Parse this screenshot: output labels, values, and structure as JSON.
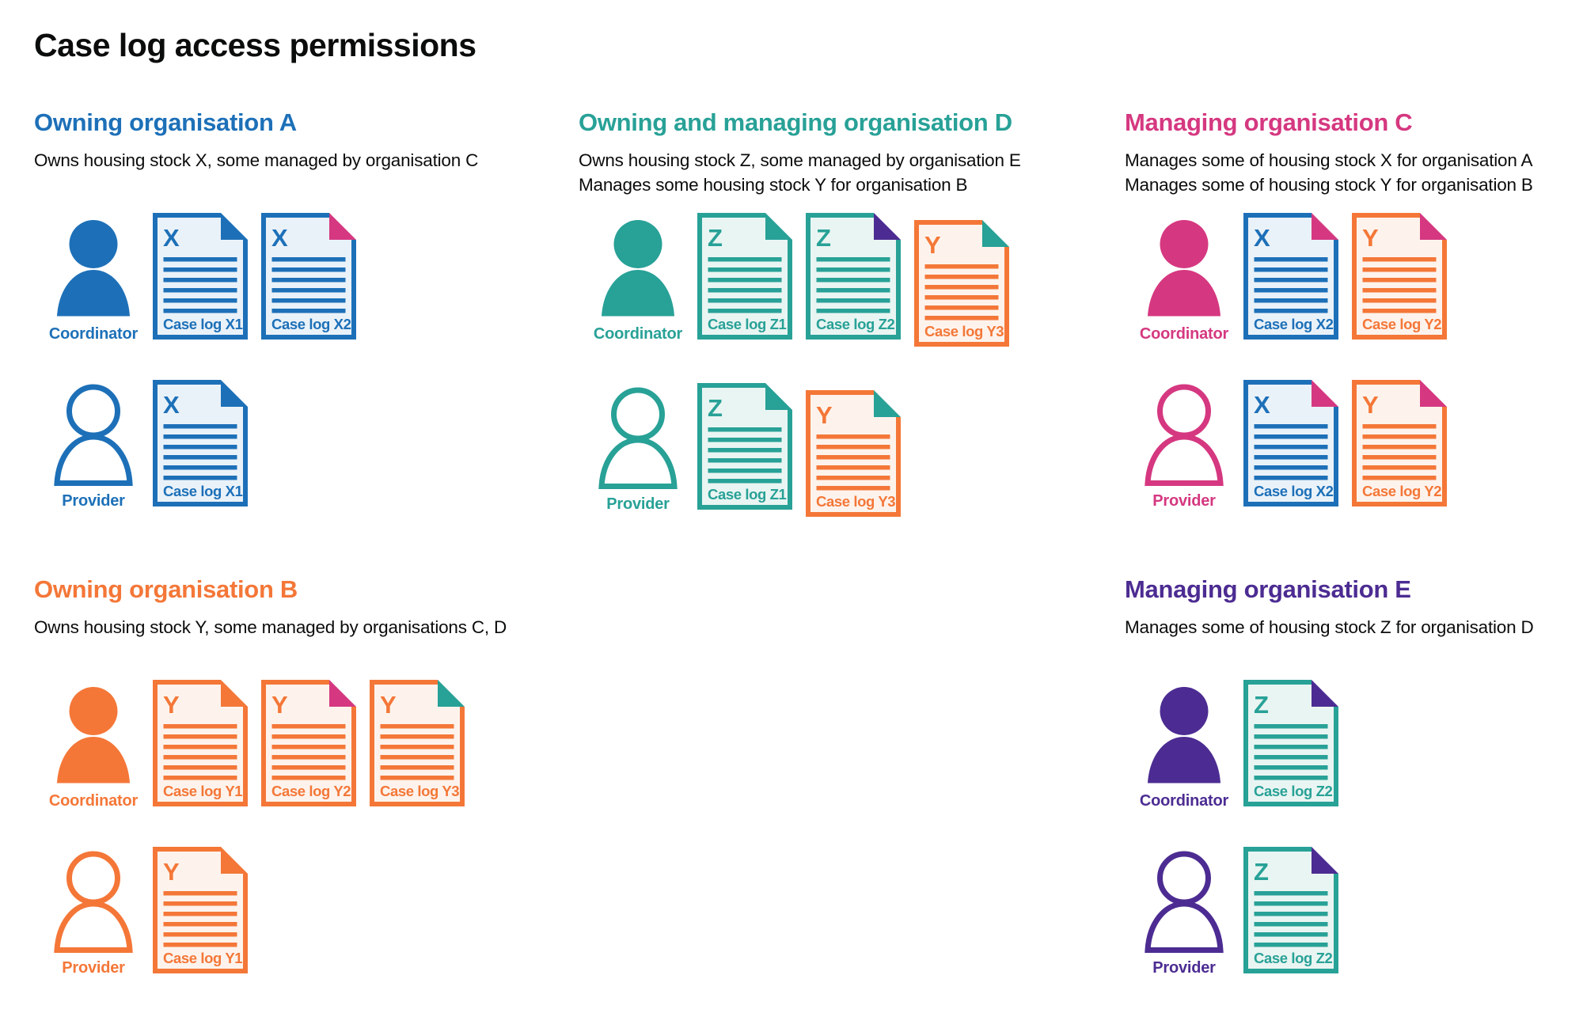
{
  "title": "Case log access permissions",
  "colors": {
    "blue": "#1d70b8",
    "teal": "#28a197",
    "pink": "#d53880",
    "orange": "#f47738",
    "purple": "#4c2c92",
    "text": "#0b0c0c",
    "background": "#ffffff"
  },
  "fills": {
    "blue": "#eaf2f9",
    "teal": "#e9f5f2",
    "orange": "#fdf3ec"
  },
  "sections": [
    {
      "id": "org-a",
      "heading": "Owning organisation A",
      "color": "blue",
      "grid": {
        "col": 1,
        "row": 1
      },
      "description": [
        "Owns housing stock X, some managed by organisation C"
      ],
      "rows": [
        {
          "role": "Coordinator",
          "icon": "filled",
          "docs": [
            {
              "label": "Case log X1",
              "letter": "X",
              "color": "blue",
              "fold": "blue"
            },
            {
              "label": "Case log X2",
              "letter": "X",
              "color": "blue",
              "fold": "pink"
            }
          ]
        },
        {
          "role": "Provider",
          "icon": "outline",
          "docs": [
            {
              "label": "Case log X1",
              "letter": "X",
              "color": "blue",
              "fold": "blue"
            }
          ]
        }
      ]
    },
    {
      "id": "org-d",
      "heading": "Owning and managing organisation D",
      "color": "teal",
      "grid": {
        "col": 2,
        "row": 1
      },
      "description": [
        "Owns housing stock Z, some managed by organisation E",
        "Manages some housing stock Y for organisation B"
      ],
      "rows": [
        {
          "role": "Coordinator",
          "icon": "filled",
          "docs": [
            {
              "label": "Case log Z1",
              "letter": "Z",
              "color": "teal",
              "fold": "teal"
            },
            {
              "label": "Case log Z2",
              "letter": "Z",
              "color": "teal",
              "fold": "purple"
            },
            {
              "label": "Case log Y3",
              "letter": "Y",
              "color": "orange",
              "fold": "teal",
              "offset": true
            }
          ]
        },
        {
          "role": "Provider",
          "icon": "outline",
          "docs": [
            {
              "label": "Case log Z1",
              "letter": "Z",
              "color": "teal",
              "fold": "teal"
            },
            {
              "label": "Case log Y3",
              "letter": "Y",
              "color": "orange",
              "fold": "teal",
              "offset": true
            }
          ]
        }
      ]
    },
    {
      "id": "org-c",
      "heading": "Managing organisation C",
      "color": "pink",
      "grid": {
        "col": 3,
        "row": 1
      },
      "description": [
        "Manages some of housing stock X for organisation A",
        "Manages some of housing stock Y for organisation B"
      ],
      "rows": [
        {
          "role": "Coordinator",
          "icon": "filled",
          "docs": [
            {
              "label": "Case log X2",
              "letter": "X",
              "color": "blue",
              "fold": "pink"
            },
            {
              "label": "Case log Y2",
              "letter": "Y",
              "color": "orange",
              "fold": "pink"
            }
          ]
        },
        {
          "role": "Provider",
          "icon": "outline",
          "docs": [
            {
              "label": "Case log X2",
              "letter": "X",
              "color": "blue",
              "fold": "pink"
            },
            {
              "label": "Case log Y2",
              "letter": "Y",
              "color": "orange",
              "fold": "pink"
            }
          ]
        }
      ]
    },
    {
      "id": "org-b",
      "heading": "Owning organisation B",
      "color": "orange",
      "grid": {
        "col": 1,
        "row": 2
      },
      "description": [
        "Owns housing stock Y, some managed by organisations C, D"
      ],
      "rows": [
        {
          "role": "Coordinator",
          "icon": "filled",
          "docs": [
            {
              "label": "Case log Y1",
              "letter": "Y",
              "color": "orange",
              "fold": "orange"
            },
            {
              "label": "Case log Y2",
              "letter": "Y",
              "color": "orange",
              "fold": "pink"
            },
            {
              "label": "Case log Y3",
              "letter": "Y",
              "color": "orange",
              "fold": "teal"
            }
          ]
        },
        {
          "role": "Provider",
          "icon": "outline",
          "docs": [
            {
              "label": "Case log Y1",
              "letter": "Y",
              "color": "orange",
              "fold": "orange"
            }
          ]
        }
      ]
    },
    {
      "id": "org-e",
      "heading": "Managing organisation E",
      "color": "purple",
      "grid": {
        "col": 3,
        "row": 2
      },
      "description": [
        "Manages some of housing stock Z for organisation D"
      ],
      "rows": [
        {
          "role": "Coordinator",
          "icon": "filled",
          "docs": [
            {
              "label": "Case log Z2",
              "letter": "Z",
              "color": "teal",
              "fold": "purple"
            }
          ]
        },
        {
          "role": "Provider",
          "icon": "outline",
          "docs": [
            {
              "label": "Case log Z2",
              "letter": "Z",
              "color": "teal",
              "fold": "purple"
            }
          ]
        }
      ]
    }
  ]
}
